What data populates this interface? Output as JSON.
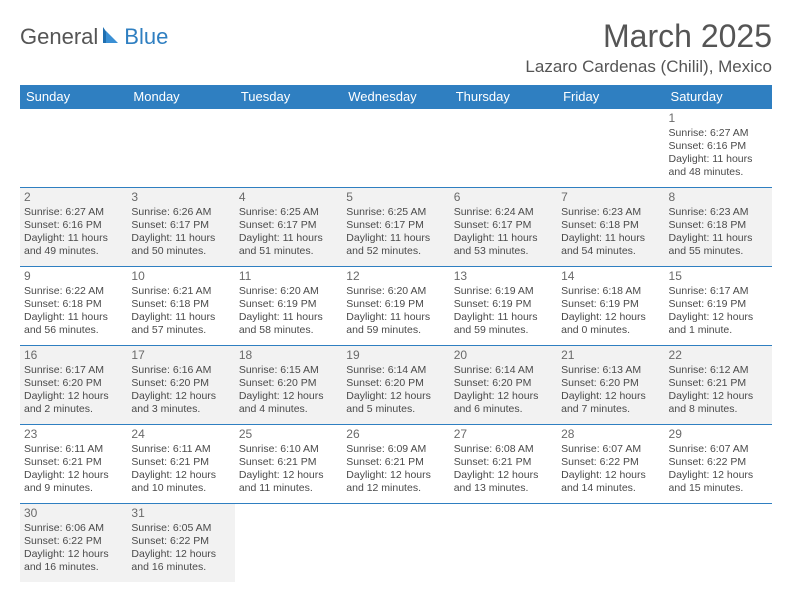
{
  "logo": {
    "part1": "General",
    "part2": "Blue"
  },
  "title": "March 2025",
  "location": "Lazaro Cardenas (Chilil), Mexico",
  "colors": {
    "header_bar": "#2f7fc1",
    "alt_row_bg": "#f2f2f2",
    "text": "#4a4a4a",
    "rule": "#2f7fc1"
  },
  "dayNames": [
    "Sunday",
    "Monday",
    "Tuesday",
    "Wednesday",
    "Thursday",
    "Friday",
    "Saturday"
  ],
  "weeks": [
    {
      "shaded": false,
      "days": [
        null,
        null,
        null,
        null,
        null,
        null,
        {
          "n": "1",
          "sr": "Sunrise: 6:27 AM",
          "ss": "Sunset: 6:16 PM",
          "dl": "Daylight: 11 hours and 48 minutes."
        }
      ]
    },
    {
      "shaded": true,
      "days": [
        {
          "n": "2",
          "sr": "Sunrise: 6:27 AM",
          "ss": "Sunset: 6:16 PM",
          "dl": "Daylight: 11 hours and 49 minutes."
        },
        {
          "n": "3",
          "sr": "Sunrise: 6:26 AM",
          "ss": "Sunset: 6:17 PM",
          "dl": "Daylight: 11 hours and 50 minutes."
        },
        {
          "n": "4",
          "sr": "Sunrise: 6:25 AM",
          "ss": "Sunset: 6:17 PM",
          "dl": "Daylight: 11 hours and 51 minutes."
        },
        {
          "n": "5",
          "sr": "Sunrise: 6:25 AM",
          "ss": "Sunset: 6:17 PM",
          "dl": "Daylight: 11 hours and 52 minutes."
        },
        {
          "n": "6",
          "sr": "Sunrise: 6:24 AM",
          "ss": "Sunset: 6:17 PM",
          "dl": "Daylight: 11 hours and 53 minutes."
        },
        {
          "n": "7",
          "sr": "Sunrise: 6:23 AM",
          "ss": "Sunset: 6:18 PM",
          "dl": "Daylight: 11 hours and 54 minutes."
        },
        {
          "n": "8",
          "sr": "Sunrise: 6:23 AM",
          "ss": "Sunset: 6:18 PM",
          "dl": "Daylight: 11 hours and 55 minutes."
        }
      ]
    },
    {
      "shaded": false,
      "days": [
        {
          "n": "9",
          "sr": "Sunrise: 6:22 AM",
          "ss": "Sunset: 6:18 PM",
          "dl": "Daylight: 11 hours and 56 minutes."
        },
        {
          "n": "10",
          "sr": "Sunrise: 6:21 AM",
          "ss": "Sunset: 6:18 PM",
          "dl": "Daylight: 11 hours and 57 minutes."
        },
        {
          "n": "11",
          "sr": "Sunrise: 6:20 AM",
          "ss": "Sunset: 6:19 PM",
          "dl": "Daylight: 11 hours and 58 minutes."
        },
        {
          "n": "12",
          "sr": "Sunrise: 6:20 AM",
          "ss": "Sunset: 6:19 PM",
          "dl": "Daylight: 11 hours and 59 minutes."
        },
        {
          "n": "13",
          "sr": "Sunrise: 6:19 AM",
          "ss": "Sunset: 6:19 PM",
          "dl": "Daylight: 11 hours and 59 minutes."
        },
        {
          "n": "14",
          "sr": "Sunrise: 6:18 AM",
          "ss": "Sunset: 6:19 PM",
          "dl": "Daylight: 12 hours and 0 minutes."
        },
        {
          "n": "15",
          "sr": "Sunrise: 6:17 AM",
          "ss": "Sunset: 6:19 PM",
          "dl": "Daylight: 12 hours and 1 minute."
        }
      ]
    },
    {
      "shaded": true,
      "days": [
        {
          "n": "16",
          "sr": "Sunrise: 6:17 AM",
          "ss": "Sunset: 6:20 PM",
          "dl": "Daylight: 12 hours and 2 minutes."
        },
        {
          "n": "17",
          "sr": "Sunrise: 6:16 AM",
          "ss": "Sunset: 6:20 PM",
          "dl": "Daylight: 12 hours and 3 minutes."
        },
        {
          "n": "18",
          "sr": "Sunrise: 6:15 AM",
          "ss": "Sunset: 6:20 PM",
          "dl": "Daylight: 12 hours and 4 minutes."
        },
        {
          "n": "19",
          "sr": "Sunrise: 6:14 AM",
          "ss": "Sunset: 6:20 PM",
          "dl": "Daylight: 12 hours and 5 minutes."
        },
        {
          "n": "20",
          "sr": "Sunrise: 6:14 AM",
          "ss": "Sunset: 6:20 PM",
          "dl": "Daylight: 12 hours and 6 minutes."
        },
        {
          "n": "21",
          "sr": "Sunrise: 6:13 AM",
          "ss": "Sunset: 6:20 PM",
          "dl": "Daylight: 12 hours and 7 minutes."
        },
        {
          "n": "22",
          "sr": "Sunrise: 6:12 AM",
          "ss": "Sunset: 6:21 PM",
          "dl": "Daylight: 12 hours and 8 minutes."
        }
      ]
    },
    {
      "shaded": false,
      "days": [
        {
          "n": "23",
          "sr": "Sunrise: 6:11 AM",
          "ss": "Sunset: 6:21 PM",
          "dl": "Daylight: 12 hours and 9 minutes."
        },
        {
          "n": "24",
          "sr": "Sunrise: 6:11 AM",
          "ss": "Sunset: 6:21 PM",
          "dl": "Daylight: 12 hours and 10 minutes."
        },
        {
          "n": "25",
          "sr": "Sunrise: 6:10 AM",
          "ss": "Sunset: 6:21 PM",
          "dl": "Daylight: 12 hours and 11 minutes."
        },
        {
          "n": "26",
          "sr": "Sunrise: 6:09 AM",
          "ss": "Sunset: 6:21 PM",
          "dl": "Daylight: 12 hours and 12 minutes."
        },
        {
          "n": "27",
          "sr": "Sunrise: 6:08 AM",
          "ss": "Sunset: 6:21 PM",
          "dl": "Daylight: 12 hours and 13 minutes."
        },
        {
          "n": "28",
          "sr": "Sunrise: 6:07 AM",
          "ss": "Sunset: 6:22 PM",
          "dl": "Daylight: 12 hours and 14 minutes."
        },
        {
          "n": "29",
          "sr": "Sunrise: 6:07 AM",
          "ss": "Sunset: 6:22 PM",
          "dl": "Daylight: 12 hours and 15 minutes."
        }
      ]
    },
    {
      "shaded": true,
      "days": [
        {
          "n": "30",
          "sr": "Sunrise: 6:06 AM",
          "ss": "Sunset: 6:22 PM",
          "dl": "Daylight: 12 hours and 16 minutes."
        },
        {
          "n": "31",
          "sr": "Sunrise: 6:05 AM",
          "ss": "Sunset: 6:22 PM",
          "dl": "Daylight: 12 hours and 16 minutes."
        },
        null,
        null,
        null,
        null,
        null
      ]
    }
  ]
}
